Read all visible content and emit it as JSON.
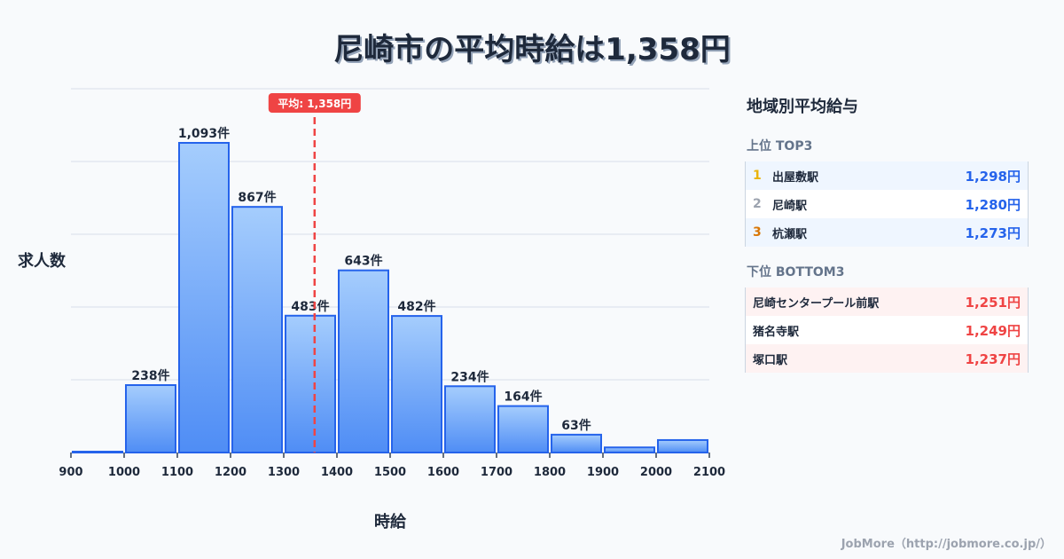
{
  "title": "尼崎市の平均時給は1,358円",
  "chart_data": {
    "type": "bar",
    "title": "尼崎市の平均時給は1,358円",
    "xlabel": "時給",
    "ylabel": "求人数",
    "bin_edges": [
      900,
      1000,
      1100,
      1200,
      1300,
      1400,
      1500,
      1600,
      1700,
      1800,
      1900,
      2000,
      2100
    ],
    "categories": [
      "900-1000",
      "1000-1100",
      "1100-1200",
      "1200-1300",
      "1300-1400",
      "1400-1500",
      "1500-1600",
      "1600-1700",
      "1700-1800",
      "1800-1900",
      "1900-2000",
      "2000-2100"
    ],
    "values": [
      3,
      238,
      1093,
      867,
      483,
      643,
      482,
      234,
      164,
      63,
      18,
      44
    ],
    "data_labels": [
      "",
      "238件",
      "1,093件",
      "867件",
      "483件",
      "643件",
      "482件",
      "234件",
      "164件",
      "63件",
      "",
      ""
    ],
    "x_tick_labels": [
      "900",
      "1000",
      "1100",
      "1200",
      "1300",
      "1400",
      "1500",
      "1600",
      "1700",
      "1800",
      "1900",
      "2000",
      "2100"
    ],
    "xlim": [
      900,
      2100
    ],
    "ylim": [
      0,
      1280
    ],
    "grid": true,
    "mean_line": {
      "value": 1358,
      "label": "平均: 1,358円",
      "color": "#ef4444"
    },
    "bar_color": "#3b82f6",
    "bar_border_color": "#2563eb"
  },
  "chart": {
    "ylabel": "求人数",
    "xlabel": "時給",
    "mean_label": "平均: 1,358円"
  },
  "panel": {
    "title": "地域別平均給与",
    "top": {
      "heading": "上位 TOP3",
      "items": [
        {
          "rank": "1",
          "name": "出屋敷駅",
          "value": "1,298円",
          "rank_color": "#eab308"
        },
        {
          "rank": "2",
          "name": "尼崎駅",
          "value": "1,280円",
          "rank_color": "#9ca3af"
        },
        {
          "rank": "3",
          "name": "杭瀬駅",
          "value": "1,273円",
          "rank_color": "#d97706"
        }
      ]
    },
    "bottom": {
      "heading": "下位 BOTTOM3",
      "items": [
        {
          "name": "尼崎センタープール前駅",
          "value": "1,251円"
        },
        {
          "name": "猪名寺駅",
          "value": "1,249円"
        },
        {
          "name": "塚口駅",
          "value": "1,237円"
        }
      ]
    }
  },
  "footer": "JobMore（http://jobmore.co.jp/）"
}
